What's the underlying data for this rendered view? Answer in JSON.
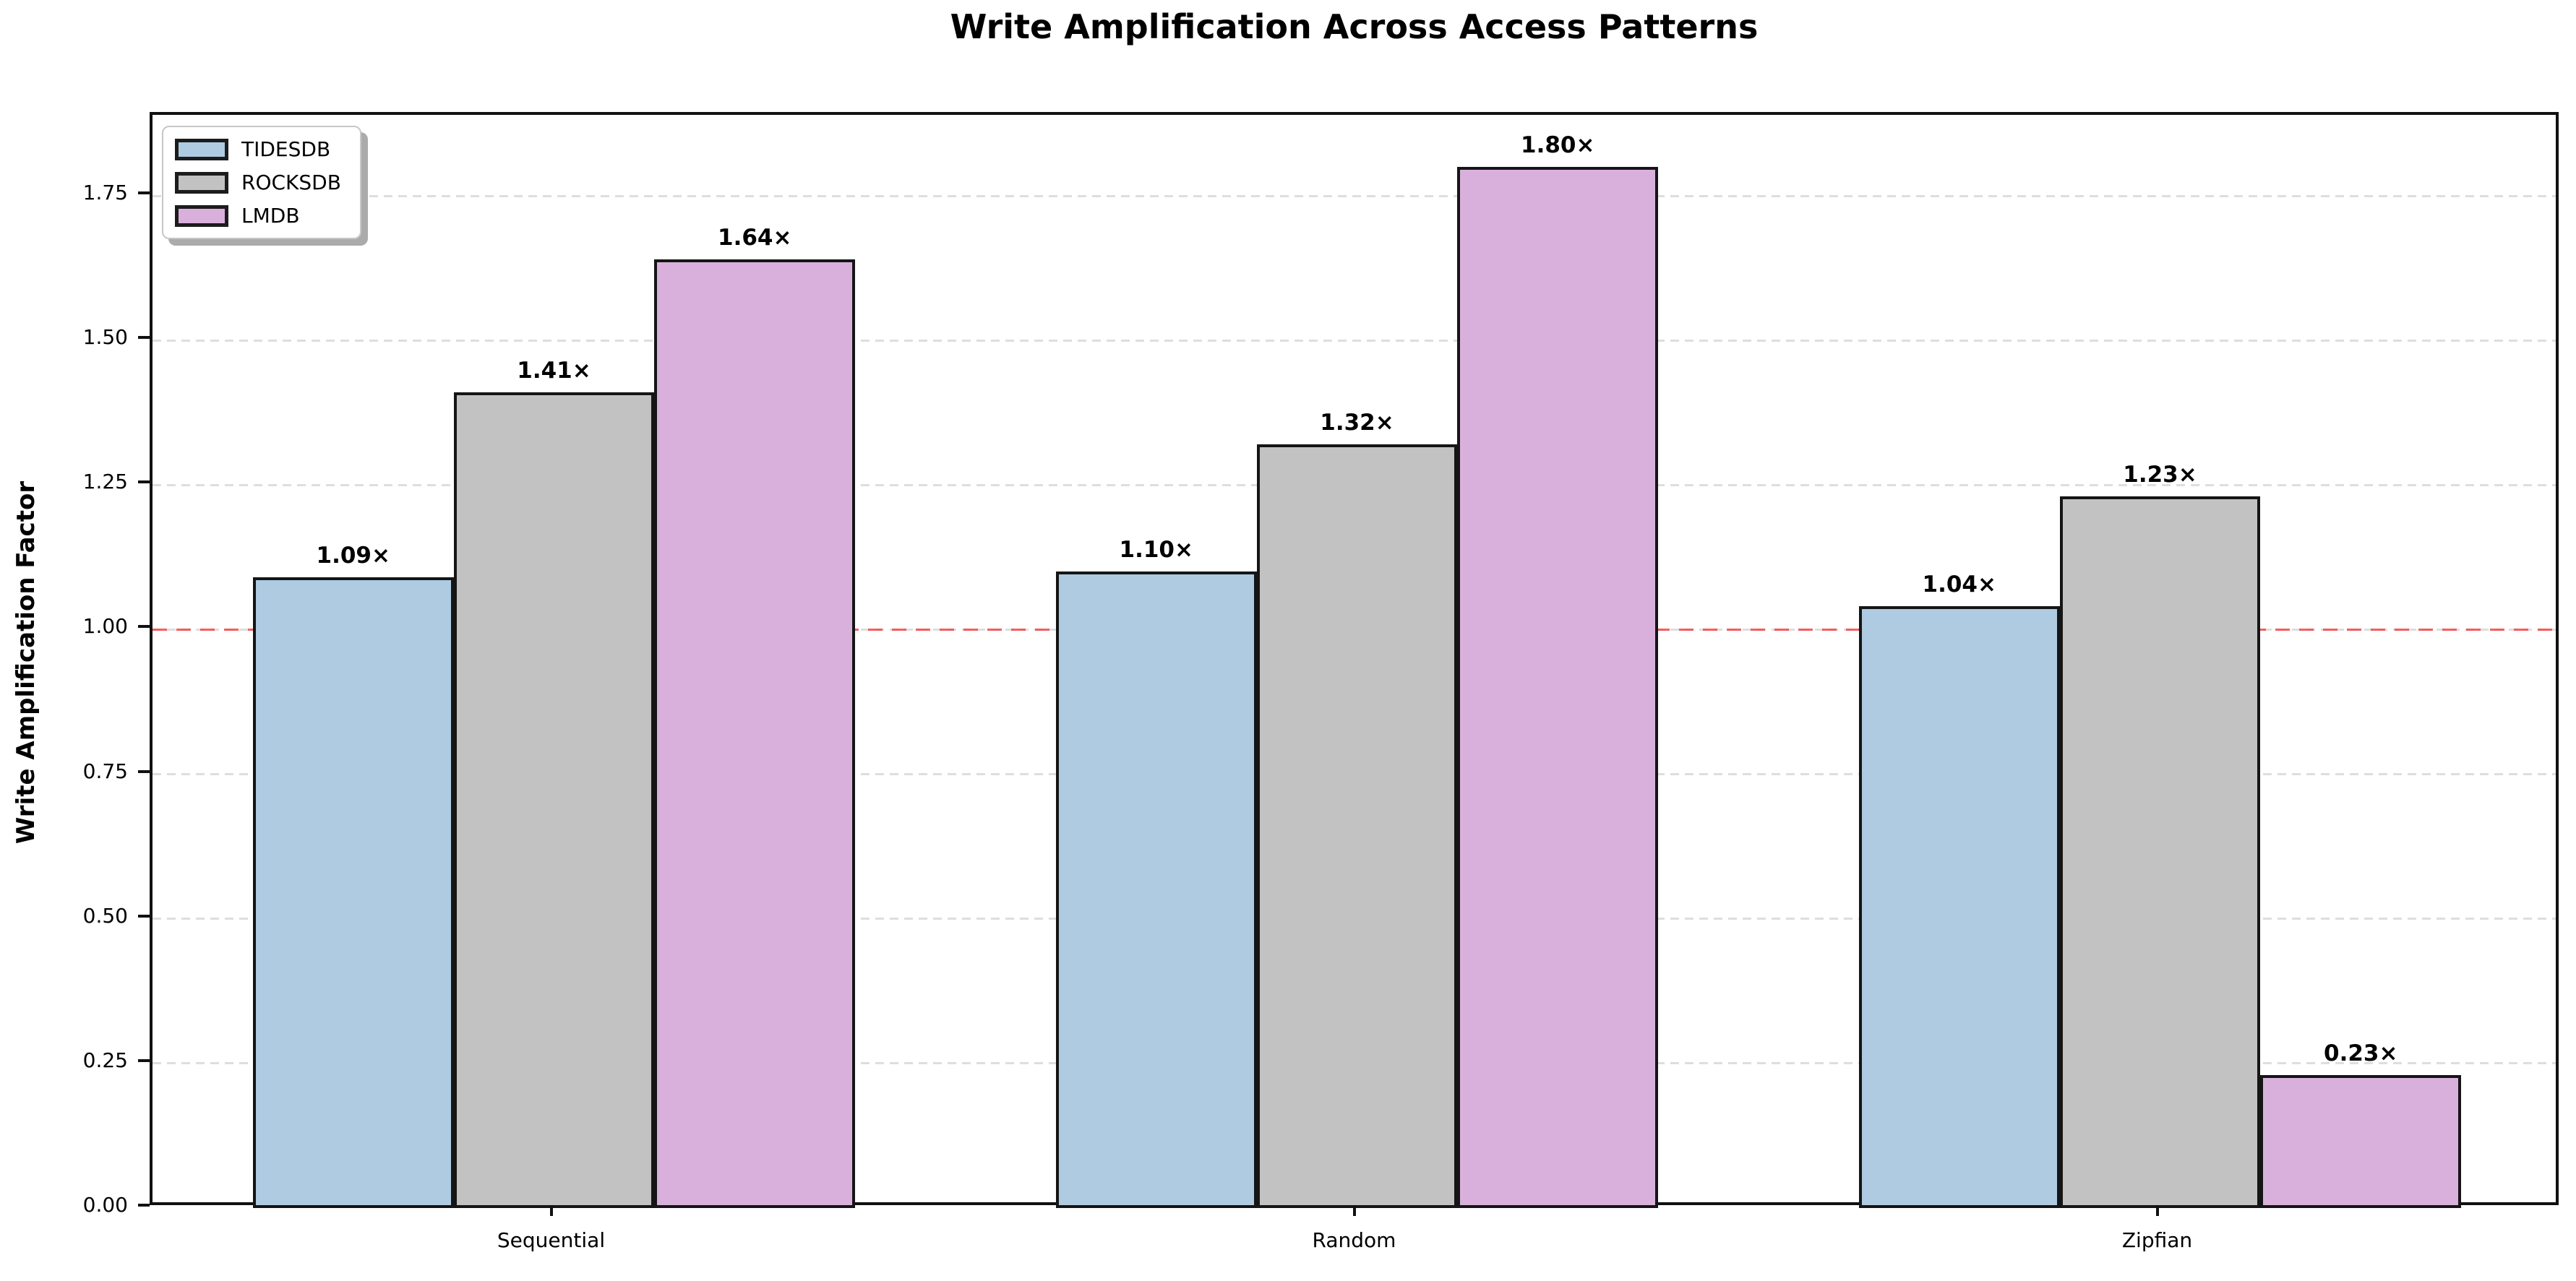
{
  "chart_data": {
    "type": "bar",
    "title": "Write Amplification Across Access Patterns",
    "xlabel": "",
    "ylabel": "Write Amplification Factor",
    "categories": [
      "Sequential",
      "Random",
      "Zipfian"
    ],
    "series": [
      {
        "name": "TIDESDB",
        "color": "#aecbe2",
        "values": [
          1.09,
          1.1,
          1.04
        ],
        "labels": [
          "1.09×",
          "1.10×",
          "1.04×"
        ]
      },
      {
        "name": "ROCKSDB",
        "color": "#c2c2c2",
        "values": [
          1.41,
          1.32,
          1.23
        ],
        "labels": [
          "1.41×",
          "1.32×",
          "1.23×"
        ]
      },
      {
        "name": "LMDB",
        "color": "#d9b0dc",
        "values": [
          1.64,
          1.8,
          0.23
        ],
        "labels": [
          "1.64×",
          "1.80×",
          "0.23×"
        ]
      }
    ],
    "yticks": [
      "0.00",
      "0.25",
      "0.50",
      "0.75",
      "1.00",
      "1.25",
      "1.50",
      "1.75"
    ],
    "ylim": [
      0,
      1.89
    ],
    "grid": "horizontal-dashed",
    "legend_position": "upper-left",
    "reference_line": {
      "value": 1.0,
      "style": "dashed",
      "color": "#f44343"
    },
    "bar_edge_color": "#151515",
    "gridline_color": "#dedede"
  }
}
